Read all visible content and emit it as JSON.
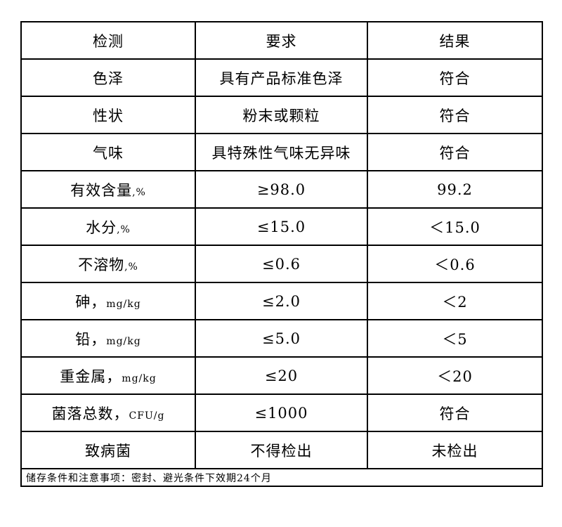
{
  "header": {
    "item": "检测",
    "requirement": "要求",
    "result": "结果"
  },
  "rows": [
    {
      "item": "色泽",
      "unit": "",
      "requirement": "具有产品标准色泽",
      "result": "符合"
    },
    {
      "item": "性状",
      "unit": "",
      "requirement": "粉末或颗粒",
      "result": "符合"
    },
    {
      "item": "气味",
      "unit": "",
      "requirement": "具特殊性气味无异味",
      "result": "符合"
    },
    {
      "item": "有效含量",
      "unit": ",%",
      "requirement": "≥98.0",
      "result": "99.2"
    },
    {
      "item": "水分",
      "unit": ",%",
      "requirement": "≤15.0",
      "result": "＜15.0"
    },
    {
      "item": "不溶物",
      "unit": ",%",
      "requirement": "≤0.6",
      "result": "＜0.6"
    },
    {
      "item": "砷，",
      "unit": "mg/kg",
      "requirement": "≤2.0",
      "result": "＜2"
    },
    {
      "item": "铅，",
      "unit": "mg/kg",
      "requirement": "≤5.0",
      "result": "＜5"
    },
    {
      "item": "重金属，",
      "unit": "mg/kg",
      "requirement": "≤20",
      "result": "＜20"
    },
    {
      "item": "菌落总数，",
      "unit": "CFU/g",
      "requirement": "≤1000",
      "result": "符合"
    },
    {
      "item": "致病菌",
      "unit": "",
      "requirement": "不得检出",
      "result": "未检出"
    }
  ],
  "footer": "储存条件和注意事项：密封、避光条件下效期24个月"
}
